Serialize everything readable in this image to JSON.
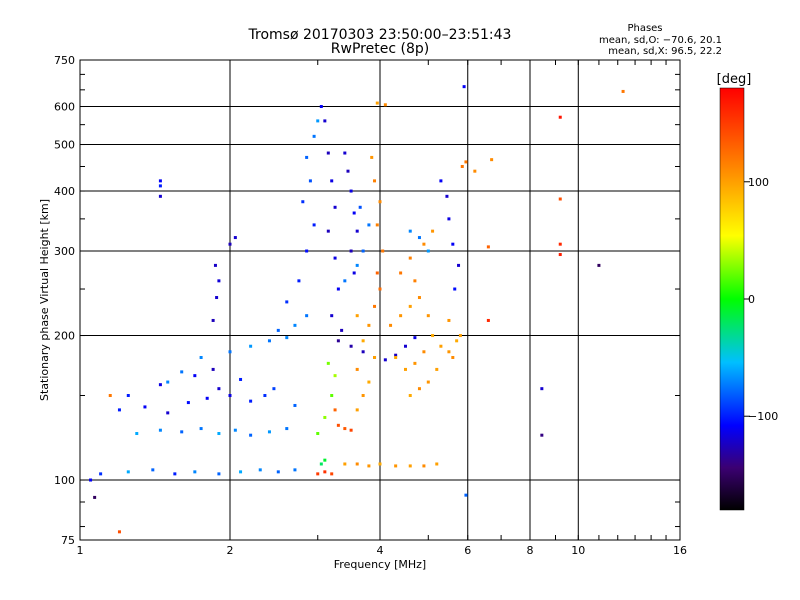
{
  "chart_data": {
    "type": "scatter",
    "title": "Tromsø 20170303 23:50:00–23:51:43",
    "subtitle": "RwPretec (8p)",
    "xlabel": "Frequency [MHz]",
    "ylabel": "Stationary phase Virtual Height [km]",
    "x_scale": "log",
    "y_scale": "log",
    "xlim": [
      1,
      16
    ],
    "ylim": [
      75,
      750
    ],
    "x_ticks": [
      1,
      2,
      4,
      6,
      8,
      10,
      16
    ],
    "x_tick_labels": [
      "1",
      "2",
      "4",
      "6",
      "8",
      "10",
      "16"
    ],
    "y_ticks": [
      75,
      100,
      200,
      300,
      400,
      500,
      600,
      750
    ],
    "y_tick_labels": [
      "75",
      "100",
      "200",
      "300",
      "400",
      "500",
      "600",
      "750"
    ],
    "grid": true,
    "stats": {
      "header": "Phases",
      "line_o": "mean, sd,O: −70.6, 20.1",
      "line_x": "mean, sd,X:  96.5, 22.2"
    },
    "colorbar": {
      "label": "[deg]",
      "range": [
        -180,
        180
      ],
      "ticks": [
        100,
        0,
        -100
      ],
      "tick_labels": [
        "100",
        "0",
        "−100"
      ]
    },
    "series": [
      {
        "points": [
          [
            1.05,
            100,
            -110
          ],
          [
            1.1,
            103,
            -95
          ],
          [
            1.25,
            104,
            -60
          ],
          [
            1.4,
            105,
            -80
          ],
          [
            1.55,
            103,
            -100
          ],
          [
            1.7,
            104,
            -70
          ],
          [
            1.9,
            103,
            -80
          ],
          [
            2.1,
            104,
            -60
          ],
          [
            2.3,
            105,
            -70
          ],
          [
            2.5,
            104,
            -80
          ],
          [
            2.7,
            105,
            -75
          ],
          [
            1.3,
            125,
            -60
          ],
          [
            1.45,
            127,
            -70
          ],
          [
            1.6,
            126,
            -80
          ],
          [
            1.75,
            128,
            -75
          ],
          [
            1.9,
            125,
            -60
          ],
          [
            2.05,
            127,
            -70
          ],
          [
            2.2,
            124,
            -80
          ],
          [
            2.4,
            126,
            -65
          ],
          [
            2.6,
            128,
            -75
          ],
          [
            1.2,
            140,
            -100
          ],
          [
            1.35,
            142,
            -110
          ],
          [
            1.5,
            138,
            -120
          ],
          [
            1.65,
            145,
            -105
          ],
          [
            1.8,
            148,
            -110
          ],
          [
            1.9,
            155,
            -120
          ],
          [
            2.0,
            150,
            -115
          ],
          [
            2.2,
            146,
            -100
          ],
          [
            2.35,
            150,
            -95
          ],
          [
            1.25,
            150,
            -100
          ],
          [
            1.45,
            158,
            -115
          ],
          [
            1.7,
            165,
            -110
          ],
          [
            1.85,
            170,
            -125
          ],
          [
            2.1,
            162,
            -100
          ],
          [
            2.45,
            155,
            -90
          ],
          [
            2.7,
            143,
            -80
          ],
          [
            1.5,
            160,
            -70
          ],
          [
            1.6,
            168,
            -75
          ],
          [
            1.75,
            180,
            -70
          ],
          [
            2.0,
            185,
            -75
          ],
          [
            2.2,
            190,
            -65
          ],
          [
            2.4,
            195,
            -75
          ],
          [
            2.6,
            198,
            -70
          ],
          [
            1.85,
            215,
            -125
          ],
          [
            1.88,
            240,
            -120
          ],
          [
            1.9,
            260,
            -118
          ],
          [
            1.87,
            280,
            -122
          ],
          [
            2.0,
            310,
            -125
          ],
          [
            2.05,
            320,
            -120
          ],
          [
            2.5,
            205,
            -80
          ],
          [
            2.7,
            210,
            -70
          ],
          [
            2.85,
            220,
            -75
          ],
          [
            2.6,
            235,
            -95
          ],
          [
            2.75,
            260,
            -100
          ],
          [
            2.85,
            300,
            -105
          ],
          [
            2.95,
            340,
            -100
          ],
          [
            2.8,
            380,
            -95
          ],
          [
            2.9,
            420,
            -85
          ],
          [
            2.85,
            470,
            -80
          ],
          [
            2.95,
            520,
            -75
          ],
          [
            3.0,
            560,
            -65
          ],
          [
            3.05,
            600,
            -110
          ],
          [
            3.1,
            560,
            -120
          ],
          [
            3.15,
            480,
            -125
          ],
          [
            3.2,
            420,
            -115
          ],
          [
            3.25,
            370,
            -120
          ],
          [
            3.15,
            330,
            -125
          ],
          [
            3.25,
            290,
            -115
          ],
          [
            3.3,
            250,
            -110
          ],
          [
            3.2,
            220,
            -120
          ],
          [
            3.35,
            205,
            -125
          ],
          [
            3.3,
            195,
            -135
          ],
          [
            3.5,
            190,
            -130
          ],
          [
            3.7,
            185,
            -125
          ],
          [
            3.9,
            180,
            -130
          ],
          [
            4.1,
            178,
            -120
          ],
          [
            4.3,
            182,
            -125
          ],
          [
            4.5,
            190,
            -120
          ],
          [
            4.7,
            198,
            -115
          ],
          [
            3.4,
            480,
            -120
          ],
          [
            3.45,
            440,
            -125
          ],
          [
            3.5,
            400,
            -115
          ],
          [
            3.55,
            360,
            -110
          ],
          [
            3.6,
            330,
            -120
          ],
          [
            3.5,
            300,
            -125
          ],
          [
            3.55,
            270,
            -115
          ],
          [
            3.4,
            260,
            -75
          ],
          [
            3.6,
            280,
            -70
          ],
          [
            3.7,
            300,
            -80
          ],
          [
            3.8,
            340,
            -75
          ],
          [
            3.65,
            370,
            -85
          ],
          [
            3.05,
            108,
            -20
          ],
          [
            3.1,
            110,
            -10
          ],
          [
            3.0,
            125,
            20
          ],
          [
            3.1,
            135,
            30
          ],
          [
            3.2,
            150,
            20
          ],
          [
            3.25,
            165,
            35
          ],
          [
            3.15,
            175,
            25
          ],
          [
            3.0,
            103,
            150
          ],
          [
            3.1,
            104,
            155
          ],
          [
            3.2,
            103,
            145
          ],
          [
            3.4,
            108,
            100
          ],
          [
            3.6,
            108,
            110
          ],
          [
            3.8,
            107,
            105
          ],
          [
            4.0,
            108,
            95
          ],
          [
            4.3,
            107,
            105
          ],
          [
            4.6,
            107,
            100
          ],
          [
            4.9,
            107,
            110
          ],
          [
            5.2,
            108,
            100
          ],
          [
            3.6,
            140,
            100
          ],
          [
            3.7,
            150,
            105
          ],
          [
            3.8,
            160,
            95
          ],
          [
            3.6,
            170,
            110
          ],
          [
            3.9,
            180,
            100
          ],
          [
            3.7,
            195,
            95
          ],
          [
            3.8,
            210,
            105
          ],
          [
            3.6,
            220,
            100
          ],
          [
            3.9,
            230,
            120
          ],
          [
            4.0,
            250,
            125
          ],
          [
            3.95,
            270,
            130
          ],
          [
            4.05,
            300,
            120
          ],
          [
            3.95,
            340,
            115
          ],
          [
            4.0,
            380,
            110
          ],
          [
            3.9,
            420,
            115
          ],
          [
            3.85,
            470,
            105
          ],
          [
            3.3,
            130,
            140
          ],
          [
            3.4,
            128,
            135
          ],
          [
            3.5,
            127,
            145
          ],
          [
            3.25,
            140,
            130
          ],
          [
            4.2,
            210,
            110
          ],
          [
            4.4,
            220,
            105
          ],
          [
            4.6,
            230,
            100
          ],
          [
            4.8,
            240,
            110
          ],
          [
            5.0,
            220,
            105
          ],
          [
            5.1,
            200,
            95
          ],
          [
            5.3,
            190,
            100
          ],
          [
            5.5,
            185,
            105
          ],
          [
            5.6,
            180,
            110
          ],
          [
            5.8,
            200,
            100
          ],
          [
            5.5,
            215,
            105
          ],
          [
            5.7,
            195,
            95
          ],
          [
            4.3,
            180,
            95
          ],
          [
            4.5,
            170,
            100
          ],
          [
            4.7,
            175,
            105
          ],
          [
            4.9,
            185,
            110
          ],
          [
            5.2,
            170,
            100
          ],
          [
            5.0,
            160,
            105
          ],
          [
            4.8,
            155,
            110
          ],
          [
            4.6,
            150,
            95
          ],
          [
            4.6,
            290,
            115
          ],
          [
            4.9,
            310,
            110
          ],
          [
            5.1,
            330,
            105
          ],
          [
            4.4,
            270,
            120
          ],
          [
            4.7,
            260,
            115
          ],
          [
            5.3,
            420,
            -110
          ],
          [
            5.45,
            390,
            -120
          ],
          [
            5.5,
            350,
            -115
          ],
          [
            5.6,
            310,
            -110
          ],
          [
            5.75,
            280,
            -120
          ],
          [
            5.65,
            250,
            -105
          ],
          [
            4.6,
            330,
            -70
          ],
          [
            4.8,
            320,
            -75
          ],
          [
            5.0,
            300,
            -65
          ],
          [
            1.45,
            420,
            -110
          ],
          [
            1.45,
            390,
            -120
          ],
          [
            1.45,
            410,
            -100
          ],
          [
            1.15,
            150,
            120
          ],
          [
            1.2,
            78,
            140
          ],
          [
            1.07,
            92,
            -150
          ],
          [
            5.9,
            660,
            -110
          ],
          [
            5.95,
            460,
            120
          ],
          [
            6.2,
            440,
            110
          ],
          [
            5.95,
            93,
            -80
          ],
          [
            5.85,
            450,
            120
          ],
          [
            6.6,
            215,
            160
          ],
          [
            6.6,
            306,
            130
          ],
          [
            6.7,
            465,
            110
          ],
          [
            8.45,
            155,
            -120
          ],
          [
            8.45,
            124,
            -140
          ],
          [
            9.2,
            570,
            170
          ],
          [
            9.2,
            295,
            165
          ],
          [
            9.2,
            385,
            140
          ],
          [
            9.2,
            310,
            160
          ],
          [
            11.0,
            280,
            -150
          ],
          [
            12.3,
            645,
            120
          ],
          [
            4.1,
            605,
            110
          ],
          [
            3.95,
            610,
            100
          ]
        ]
      }
    ]
  }
}
